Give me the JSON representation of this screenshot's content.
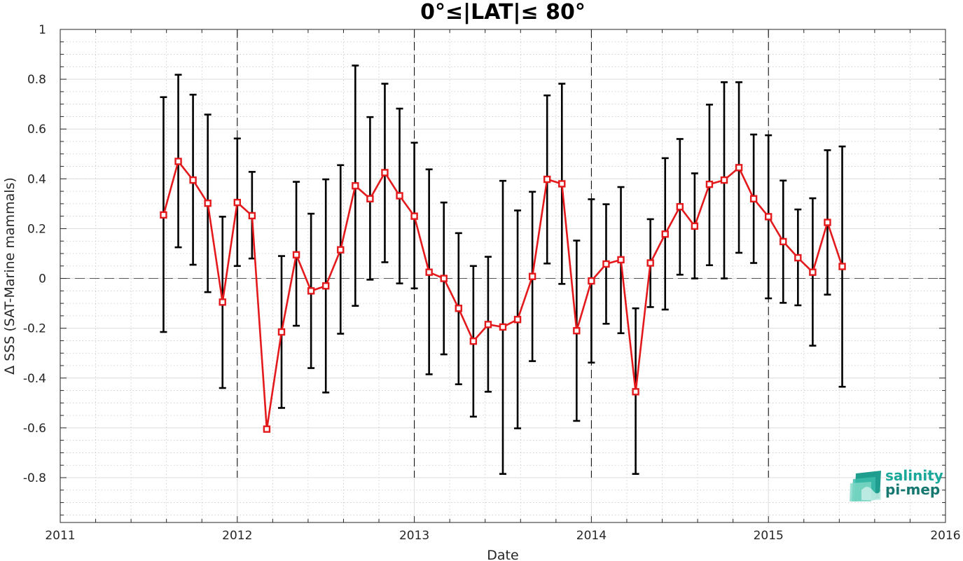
{
  "chart_data": {
    "type": "line",
    "title": "0°≤|LAT|≤ 80°",
    "xlabel": "Date",
    "ylabel": "Δ SSS (SAT-Marine mammals)",
    "xlim": [
      2011,
      2016
    ],
    "ylim": [
      -0.98,
      1.0
    ],
    "x_ticks": [
      "2011",
      "2012",
      "2013",
      "2014",
      "2015",
      "2016"
    ],
    "y_ticks": [
      "1",
      "0.8",
      "0.6",
      "0.4",
      "0.2",
      "0",
      "-0.2",
      "-0.4",
      "-0.6",
      "-0.8"
    ],
    "grid": "on (major and minor, dotted)",
    "reference_lines": {
      "zero_line": 0,
      "year_boundaries": [
        2012,
        2013,
        2014,
        2015
      ]
    },
    "series": [
      {
        "color": "#e3191c",
        "errorbar_color": "#000000",
        "marker": "square",
        "points": [
          {
            "x": "2011-08",
            "y": 0.255,
            "lo": -0.215,
            "hi": 0.728
          },
          {
            "x": "2011-09",
            "y": 0.47,
            "lo": 0.125,
            "hi": 0.818
          },
          {
            "x": "2011-10",
            "y": 0.395,
            "lo": 0.055,
            "hi": 0.738
          },
          {
            "x": "2011-11",
            "y": 0.302,
            "lo": -0.055,
            "hi": 0.658
          },
          {
            "x": "2011-12",
            "y": -0.095,
            "lo": -0.44,
            "hi": 0.248
          },
          {
            "x": "2012-01",
            "y": 0.305,
            "lo": 0.05,
            "hi": 0.562
          },
          {
            "x": "2012-02",
            "y": 0.252,
            "lo": 0.08,
            "hi": 0.428
          },
          {
            "x": "2012-03",
            "y": -0.605,
            "lo": -0.605,
            "hi": -0.605
          },
          {
            "x": "2012-04",
            "y": -0.215,
            "lo": -0.52,
            "hi": 0.09
          },
          {
            "x": "2012-05",
            "y": 0.095,
            "lo": -0.19,
            "hi": 0.388
          },
          {
            "x": "2012-06",
            "y": -0.05,
            "lo": -0.36,
            "hi": 0.26
          },
          {
            "x": "2012-07",
            "y": -0.03,
            "lo": -0.458,
            "hi": 0.398
          },
          {
            "x": "2012-08",
            "y": 0.115,
            "lo": -0.222,
            "hi": 0.455
          },
          {
            "x": "2012-09",
            "y": 0.372,
            "lo": -0.11,
            "hi": 0.855
          },
          {
            "x": "2012-10",
            "y": 0.32,
            "lo": -0.005,
            "hi": 0.648
          },
          {
            "x": "2012-11",
            "y": 0.425,
            "lo": 0.065,
            "hi": 0.782
          },
          {
            "x": "2012-12",
            "y": 0.332,
            "lo": -0.02,
            "hi": 0.682
          },
          {
            "x": "2013-01",
            "y": 0.25,
            "lo": -0.04,
            "hi": 0.545
          },
          {
            "x": "2013-02",
            "y": 0.025,
            "lo": -0.385,
            "hi": 0.438
          },
          {
            "x": "2013-03",
            "y": 0.0,
            "lo": -0.305,
            "hi": 0.305
          },
          {
            "x": "2013-04",
            "y": -0.12,
            "lo": -0.425,
            "hi": 0.182
          },
          {
            "x": "2013-05",
            "y": -0.252,
            "lo": -0.555,
            "hi": 0.05
          },
          {
            "x": "2013-06",
            "y": -0.185,
            "lo": -0.455,
            "hi": 0.087
          },
          {
            "x": "2013-07",
            "y": -0.195,
            "lo": -0.785,
            "hi": 0.392
          },
          {
            "x": "2013-08",
            "y": -0.165,
            "lo": -0.602,
            "hi": 0.273
          },
          {
            "x": "2013-09",
            "y": 0.008,
            "lo": -0.332,
            "hi": 0.348
          },
          {
            "x": "2013-10",
            "y": 0.398,
            "lo": 0.06,
            "hi": 0.735
          },
          {
            "x": "2013-11",
            "y": 0.38,
            "lo": -0.022,
            "hi": 0.782
          },
          {
            "x": "2013-12",
            "y": -0.21,
            "lo": -0.572,
            "hi": 0.152
          },
          {
            "x": "2014-01",
            "y": -0.01,
            "lo": -0.338,
            "hi": 0.318
          },
          {
            "x": "2014-02",
            "y": 0.058,
            "lo": -0.182,
            "hi": 0.298
          },
          {
            "x": "2014-03",
            "y": 0.075,
            "lo": -0.22,
            "hi": 0.367
          },
          {
            "x": "2014-04",
            "y": -0.455,
            "lo": -0.785,
            "hi": -0.12
          },
          {
            "x": "2014-05",
            "y": 0.062,
            "lo": -0.115,
            "hi": 0.238
          },
          {
            "x": "2014-06",
            "y": 0.178,
            "lo": -0.125,
            "hi": 0.483
          },
          {
            "x": "2014-07",
            "y": 0.288,
            "lo": 0.015,
            "hi": 0.56
          },
          {
            "x": "2014-08",
            "y": 0.21,
            "lo": 0.0,
            "hi": 0.422
          },
          {
            "x": "2014-09",
            "y": 0.378,
            "lo": 0.053,
            "hi": 0.698
          },
          {
            "x": "2014-10",
            "y": 0.395,
            "lo": 0.0,
            "hi": 0.788
          },
          {
            "x": "2014-11",
            "y": 0.445,
            "lo": 0.103,
            "hi": 0.788
          },
          {
            "x": "2014-12",
            "y": 0.32,
            "lo": 0.062,
            "hi": 0.578
          },
          {
            "x": "2015-01",
            "y": 0.248,
            "lo": -0.08,
            "hi": 0.575
          },
          {
            "x": "2015-02",
            "y": 0.148,
            "lo": -0.098,
            "hi": 0.393
          },
          {
            "x": "2015-03",
            "y": 0.083,
            "lo": -0.108,
            "hi": 0.277
          },
          {
            "x": "2015-04",
            "y": 0.025,
            "lo": -0.27,
            "hi": 0.322
          },
          {
            "x": "2015-05",
            "y": 0.225,
            "lo": -0.065,
            "hi": 0.515
          },
          {
            "x": "2015-06",
            "y": 0.048,
            "lo": -0.435,
            "hi": 0.53
          }
        ]
      }
    ]
  },
  "logo": {
    "line1": "salinity",
    "line2": "pi-mep",
    "color": "#1aa89a",
    "color_dark": "#15776f"
  }
}
